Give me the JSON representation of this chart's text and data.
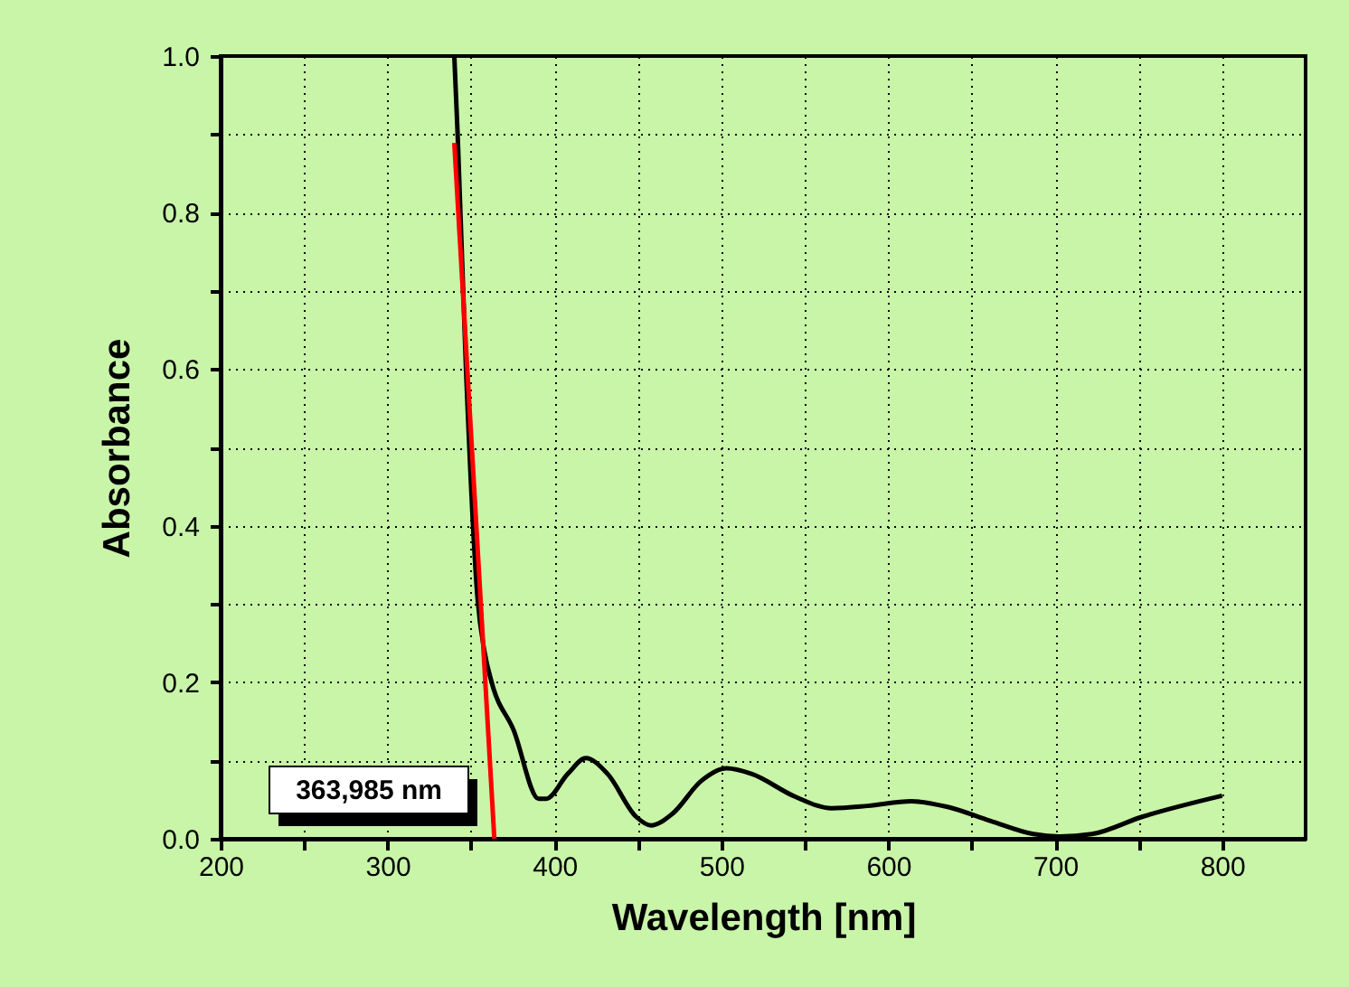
{
  "chart_data": {
    "type": "line",
    "xlabel": "Wavelength [nm]",
    "ylabel": "Absorbance",
    "xlim": [
      200,
      850
    ],
    "ylim": [
      0,
      1
    ],
    "xticks": [
      200,
      {
        "value": 250,
        "label": null
      },
      300,
      {
        "value": 350,
        "label": null
      },
      400,
      {
        "value": 450,
        "label": null
      },
      500,
      {
        "value": 550,
        "label": null
      },
      600,
      {
        "value": 650,
        "label": null
      },
      700,
      {
        "value": 750,
        "label": null
      },
      800
    ],
    "yticks": [
      {
        "value": 0,
        "label": "0.0"
      },
      {
        "value": 0.1,
        "label": null
      },
      {
        "value": 0.2,
        "label": "0.2"
      },
      {
        "value": 0.3,
        "label": null
      },
      {
        "value": 0.4,
        "label": "0.4"
      },
      {
        "value": 0.5,
        "label": null
      },
      {
        "value": 0.6,
        "label": "0.6"
      },
      {
        "value": 0.7,
        "label": null
      },
      {
        "value": 0.8,
        "label": "0.8"
      },
      {
        "value": 0.9,
        "label": null
      },
      {
        "value": 1,
        "label": "1.0"
      }
    ],
    "grid": true,
    "line_style": "solid",
    "marker": "none",
    "series": [
      {
        "color": "#000000",
        "x": [
          340,
          342,
          347,
          354,
          358,
          362.5,
          375.5,
          390.6,
          395,
          408,
          418.8,
          431.8,
          449,
          457.8,
          470.7,
          488,
          503,
          518,
          544,
          566,
          587.7,
          613.7,
          635,
          661,
          687,
          702.5,
          722,
          752,
          800
        ],
        "values": [
          1.0,
          0.9,
          0.6,
          0.305,
          0.24,
          0.199,
          0.139,
          0.051,
          0.051,
          0.083,
          0.103,
          0.083,
          0.028,
          0.017,
          0.032,
          0.074,
          0.09,
          0.083,
          0.054,
          0.039,
          0.042,
          0.048,
          0.041,
          0.023,
          0.006,
          0.003,
          0.006,
          0.028,
          0.055
        ]
      },
      {
        "type": "line",
        "color": "#ff0000",
        "x": [
          340,
          363.985
        ],
        "values": [
          0.889,
          0
        ]
      }
    ],
    "annotations": [
      "363,985 nm"
    ]
  }
}
